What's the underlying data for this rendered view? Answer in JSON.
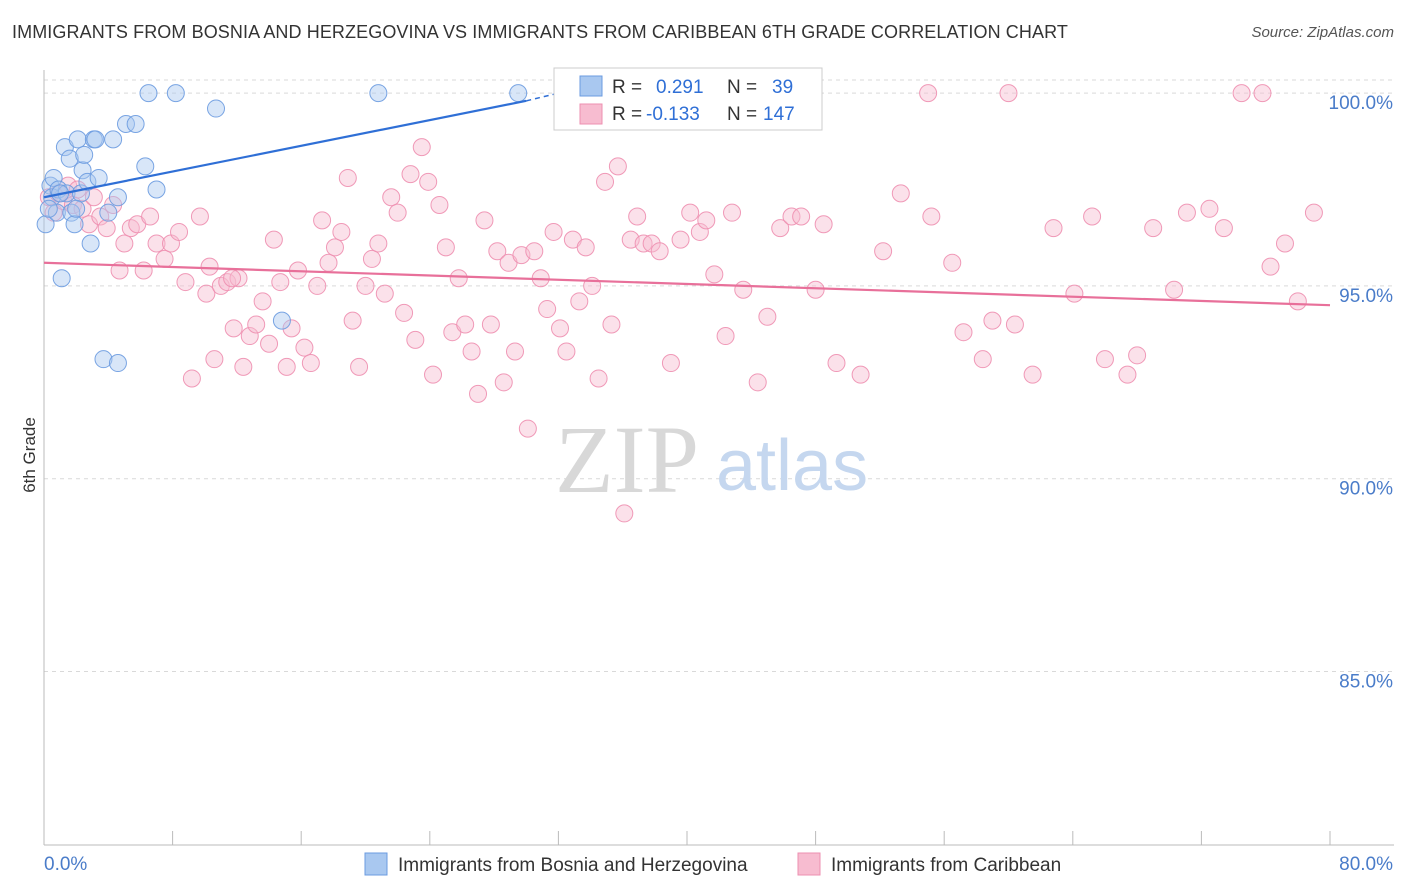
{
  "title": "IMMIGRANTS FROM BOSNIA AND HERZEGOVINA VS IMMIGRANTS FROM CARIBBEAN 6TH GRADE CORRELATION CHART",
  "source": "Source: ZipAtlas.com",
  "watermark": {
    "zip": "ZIP",
    "atlas": "atlas"
  },
  "colors": {
    "blue_fill": "#a9c8f0",
    "blue_stroke": "#6b9be0",
    "blue_line": "#2f6fd6",
    "pink_fill": "#f7bcd0",
    "pink_stroke": "#ee8fb0",
    "pink_line": "#e8709a",
    "grid": "#d9d9d9",
    "tick_text": "#4a7cc9"
  },
  "legend": {
    "rows": [
      {
        "r_label": "R =",
        "r_value": "0.291",
        "n_label": "N =",
        "n_value": "39"
      },
      {
        "r_label": "R =",
        "r_value": "-0.133",
        "n_label": "N =",
        "n_value": "147"
      }
    ]
  },
  "bottom_legend": [
    "Immigrants from Bosnia and Herzegovina",
    "Immigrants from Caribbean"
  ],
  "chart_data": {
    "type": "scatter",
    "title": "IMMIGRANTS FROM BOSNIA AND HERZEGOVINA VS IMMIGRANTS FROM CARIBBEAN 6TH GRADE CORRELATION CHART",
    "xlabel": "",
    "ylabel": "6th Grade",
    "xlim": [
      0,
      80
    ],
    "ylim": [
      80.5,
      100.6
    ],
    "x_tick_labels": [
      "0.0%",
      "80.0%"
    ],
    "y_ticks": [
      85,
      90,
      95,
      100
    ],
    "y_tick_labels": [
      "85.0%",
      "90.0%",
      "95.0%",
      "100.0%"
    ],
    "series": [
      {
        "name": "Immigrants from Bosnia and Herzegovina",
        "r": 0.291,
        "n": 39,
        "trend": {
          "x": [
            0,
            30
          ],
          "y": [
            97.3,
            99.8
          ],
          "dashed_to": [
            32,
            100.0
          ]
        },
        "points": [
          [
            0.1,
            96.6
          ],
          [
            0.4,
            97.6
          ],
          [
            0.5,
            97.3
          ],
          [
            0.6,
            97.8
          ],
          [
            0.8,
            96.9
          ],
          [
            0.9,
            97.5
          ],
          [
            1.1,
            95.2
          ],
          [
            1.3,
            98.6
          ],
          [
            1.4,
            97.4
          ],
          [
            1.6,
            98.3
          ],
          [
            1.7,
            96.9
          ],
          [
            1.9,
            96.6
          ],
          [
            2.1,
            98.8
          ],
          [
            2.3,
            97.4
          ],
          [
            2.4,
            98.0
          ],
          [
            2.7,
            97.7
          ],
          [
            2.9,
            96.1
          ],
          [
            3.1,
            98.8
          ],
          [
            3.4,
            97.8
          ],
          [
            4.0,
            96.9
          ],
          [
            4.3,
            98.8
          ],
          [
            4.6,
            97.3
          ],
          [
            5.1,
            99.2
          ],
          [
            5.7,
            99.2
          ],
          [
            6.3,
            98.1
          ],
          [
            6.5,
            100.0
          ],
          [
            7.0,
            97.5
          ],
          [
            8.2,
            100.0
          ],
          [
            10.7,
            99.6
          ],
          [
            14.8,
            94.1
          ],
          [
            20.8,
            100.0
          ],
          [
            29.5,
            100.0
          ],
          [
            2.5,
            98.4
          ],
          [
            3.7,
            93.1
          ],
          [
            4.6,
            93.0
          ],
          [
            0.3,
            97.0
          ],
          [
            1.0,
            97.4
          ],
          [
            2.0,
            97.0
          ],
          [
            3.2,
            98.8
          ]
        ]
      },
      {
        "name": "Immigrants from Caribbean",
        "r": -0.133,
        "n": 147,
        "trend": {
          "x": [
            0,
            80
          ],
          "y": [
            95.6,
            94.5
          ]
        },
        "points": [
          [
            0.3,
            97.3
          ],
          [
            0.6,
            96.9
          ],
          [
            0.9,
            97.4
          ],
          [
            1.2,
            97.2
          ],
          [
            1.5,
            97.6
          ],
          [
            1.8,
            97.1
          ],
          [
            2.1,
            97.5
          ],
          [
            2.4,
            97.0
          ],
          [
            2.8,
            96.6
          ],
          [
            3.1,
            97.3
          ],
          [
            3.5,
            96.8
          ],
          [
            3.9,
            96.5
          ],
          [
            4.3,
            97.1
          ],
          [
            4.7,
            95.4
          ],
          [
            5.0,
            96.1
          ],
          [
            5.4,
            96.5
          ],
          [
            5.8,
            96.6
          ],
          [
            6.2,
            95.4
          ],
          [
            6.6,
            96.8
          ],
          [
            7.0,
            96.1
          ],
          [
            7.5,
            95.7
          ],
          [
            7.9,
            96.1
          ],
          [
            8.4,
            96.4
          ],
          [
            8.8,
            95.1
          ],
          [
            9.2,
            92.6
          ],
          [
            9.7,
            96.8
          ],
          [
            10.1,
            94.8
          ],
          [
            10.3,
            95.5
          ],
          [
            10.6,
            93.1
          ],
          [
            11.0,
            95.0
          ],
          [
            11.4,
            95.1
          ],
          [
            11.8,
            93.9
          ],
          [
            12.1,
            95.2
          ],
          [
            12.4,
            92.9
          ],
          [
            12.8,
            93.7
          ],
          [
            13.2,
            94.0
          ],
          [
            13.6,
            94.6
          ],
          [
            14.0,
            93.5
          ],
          [
            14.3,
            96.2
          ],
          [
            14.7,
            95.1
          ],
          [
            15.1,
            92.9
          ],
          [
            15.4,
            93.9
          ],
          [
            15.8,
            95.4
          ],
          [
            16.2,
            93.4
          ],
          [
            16.6,
            93.0
          ],
          [
            17.0,
            95.0
          ],
          [
            17.3,
            96.7
          ],
          [
            17.7,
            95.6
          ],
          [
            18.1,
            96.0
          ],
          [
            18.5,
            96.4
          ],
          [
            18.9,
            97.8
          ],
          [
            19.2,
            94.1
          ],
          [
            19.6,
            92.9
          ],
          [
            20.0,
            95.0
          ],
          [
            20.4,
            95.7
          ],
          [
            20.8,
            96.1
          ],
          [
            21.2,
            94.8
          ],
          [
            21.6,
            97.3
          ],
          [
            22.0,
            96.9
          ],
          [
            22.4,
            94.3
          ],
          [
            22.8,
            97.9
          ],
          [
            23.1,
            93.6
          ],
          [
            23.5,
            98.6
          ],
          [
            23.9,
            97.7
          ],
          [
            24.2,
            92.7
          ],
          [
            24.6,
            97.1
          ],
          [
            25.0,
            96.0
          ],
          [
            25.4,
            93.8
          ],
          [
            25.8,
            95.2
          ],
          [
            26.2,
            94.0
          ],
          [
            26.6,
            93.3
          ],
          [
            27.0,
            92.2
          ],
          [
            27.4,
            96.7
          ],
          [
            27.8,
            94.0
          ],
          [
            28.2,
            95.9
          ],
          [
            28.6,
            92.5
          ],
          [
            28.9,
            95.6
          ],
          [
            29.3,
            93.3
          ],
          [
            29.7,
            95.8
          ],
          [
            30.1,
            91.3
          ],
          [
            30.5,
            95.9
          ],
          [
            30.9,
            95.2
          ],
          [
            31.3,
            94.4
          ],
          [
            31.7,
            96.4
          ],
          [
            32.1,
            93.9
          ],
          [
            32.5,
            93.3
          ],
          [
            32.9,
            96.2
          ],
          [
            33.3,
            94.6
          ],
          [
            33.7,
            96.0
          ],
          [
            34.1,
            95.0
          ],
          [
            34.5,
            92.6
          ],
          [
            34.9,
            97.7
          ],
          [
            35.3,
            94.0
          ],
          [
            35.7,
            98.1
          ],
          [
            36.1,
            89.1
          ],
          [
            36.5,
            96.2
          ],
          [
            36.9,
            96.8
          ],
          [
            37.3,
            96.1
          ],
          [
            37.8,
            96.1
          ],
          [
            38.3,
            95.9
          ],
          [
            39.0,
            93.0
          ],
          [
            39.6,
            96.2
          ],
          [
            40.2,
            96.9
          ],
          [
            40.8,
            96.4
          ],
          [
            41.2,
            96.7
          ],
          [
            41.7,
            95.3
          ],
          [
            42.4,
            93.7
          ],
          [
            42.8,
            96.9
          ],
          [
            43.5,
            94.9
          ],
          [
            44.4,
            92.5
          ],
          [
            45.0,
            94.2
          ],
          [
            45.8,
            96.5
          ],
          [
            46.5,
            96.8
          ],
          [
            47.1,
            96.8
          ],
          [
            48.0,
            94.9
          ],
          [
            49.3,
            93.0
          ],
          [
            50.8,
            92.7
          ],
          [
            52.2,
            95.9
          ],
          [
            53.3,
            97.4
          ],
          [
            55.2,
            96.8
          ],
          [
            56.5,
            95.6
          ],
          [
            57.2,
            93.8
          ],
          [
            58.4,
            93.1
          ],
          [
            59.0,
            94.1
          ],
          [
            60.4,
            94.0
          ],
          [
            61.5,
            92.7
          ],
          [
            62.8,
            96.5
          ],
          [
            64.1,
            94.8
          ],
          [
            65.2,
            96.8
          ],
          [
            66.0,
            93.1
          ],
          [
            67.4,
            92.7
          ],
          [
            68.0,
            93.2
          ],
          [
            69.0,
            96.5
          ],
          [
            70.3,
            94.9
          ],
          [
            71.1,
            96.9
          ],
          [
            72.5,
            97.0
          ],
          [
            73.4,
            96.5
          ],
          [
            74.5,
            100.0
          ],
          [
            75.8,
            100.0
          ],
          [
            76.3,
            95.5
          ],
          [
            77.2,
            96.1
          ],
          [
            78.0,
            94.6
          ],
          [
            79.0,
            96.9
          ],
          [
            60.0,
            100.0
          ],
          [
            55.0,
            100.0
          ],
          [
            48.5,
            96.6
          ],
          [
            11.7,
            95.2
          ]
        ]
      }
    ],
    "grid": true,
    "legend_position": "top-center",
    "bottom_legend_position": "bottom"
  }
}
